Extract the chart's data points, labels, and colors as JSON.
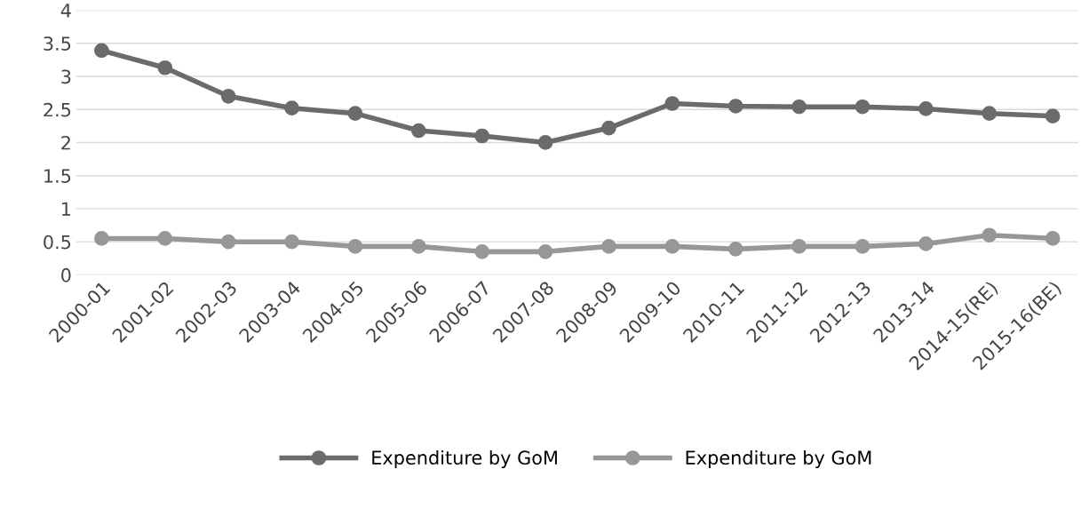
{
  "chart_data": {
    "type": "line",
    "categories": [
      "2000-01",
      "2001-02",
      "2002-03",
      "2003-04",
      "2004-05",
      "2005-06",
      "2006-07",
      "2007-08",
      "2008-09",
      "2009-10",
      "2010-11",
      "2011-12",
      "2012-13",
      "2013-14",
      "2014-15(RE)",
      "2015-16(BE)"
    ],
    "series": [
      {
        "name": "Expenditure by GoM",
        "color": "#6b6b6b",
        "values": [
          3.39,
          3.13,
          2.7,
          2.52,
          2.44,
          2.18,
          2.1,
          2.0,
          2.22,
          2.59,
          2.55,
          2.54,
          2.54,
          2.51,
          2.44,
          2.4
        ]
      },
      {
        "name": "Expenditure by GoM",
        "color": "#979797",
        "values": [
          0.55,
          0.55,
          0.5,
          0.5,
          0.43,
          0.43,
          0.35,
          0.35,
          0.43,
          0.43,
          0.39,
          0.43,
          0.43,
          0.47,
          0.6,
          0.55
        ]
      }
    ],
    "ylim": [
      0,
      4
    ],
    "yticks": [
      0,
      0.5,
      1,
      1.5,
      2,
      2.5,
      3,
      3.5,
      4
    ],
    "grid": "y",
    "legend": "bottom",
    "marker": "circle",
    "line_style": "solid"
  }
}
